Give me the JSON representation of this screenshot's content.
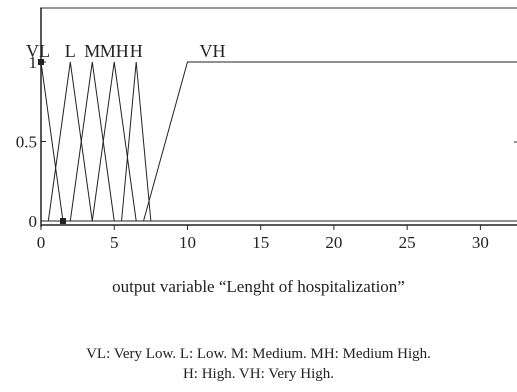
{
  "chart_data": {
    "type": "line",
    "title": "",
    "xlabel": "output variable “Lenght of hospitalization”",
    "ylabel": "",
    "xlim": [
      0,
      32.5
    ],
    "ylim": [
      0,
      1
    ],
    "xticks": [
      "0",
      "5",
      "10",
      "15",
      "20",
      "25",
      "30"
    ],
    "yticks": [
      "0",
      "0.5",
      "1"
    ],
    "grid": false,
    "series": [
      {
        "name": "VL",
        "x": [
          0,
          0,
          1.5
        ],
        "y": [
          0,
          1,
          0
        ]
      },
      {
        "name": "L",
        "x": [
          0.5,
          2,
          3.5
        ],
        "y": [
          0,
          1,
          0
        ]
      },
      {
        "name": "M",
        "x": [
          2,
          3.5,
          5
        ],
        "y": [
          0,
          1,
          0
        ]
      },
      {
        "name": "MH",
        "x": [
          3.5,
          5,
          6.5
        ],
        "y": [
          0,
          1,
          0
        ]
      },
      {
        "name": "H",
        "x": [
          5.5,
          6.5,
          7.5
        ],
        "y": [
          0,
          1,
          0
        ]
      },
      {
        "name": "VH",
        "x": [
          7,
          10,
          32.5
        ],
        "y": [
          0,
          1,
          1
        ]
      }
    ],
    "markers": [
      {
        "x": 0,
        "y": 1
      },
      {
        "x": 1.5,
        "y": 0
      }
    ]
  },
  "caption": {
    "line1": "VL: Very Low. L: Low. M: Medium. MH: Medium High.",
    "line2": "H: High. VH: Very High."
  }
}
